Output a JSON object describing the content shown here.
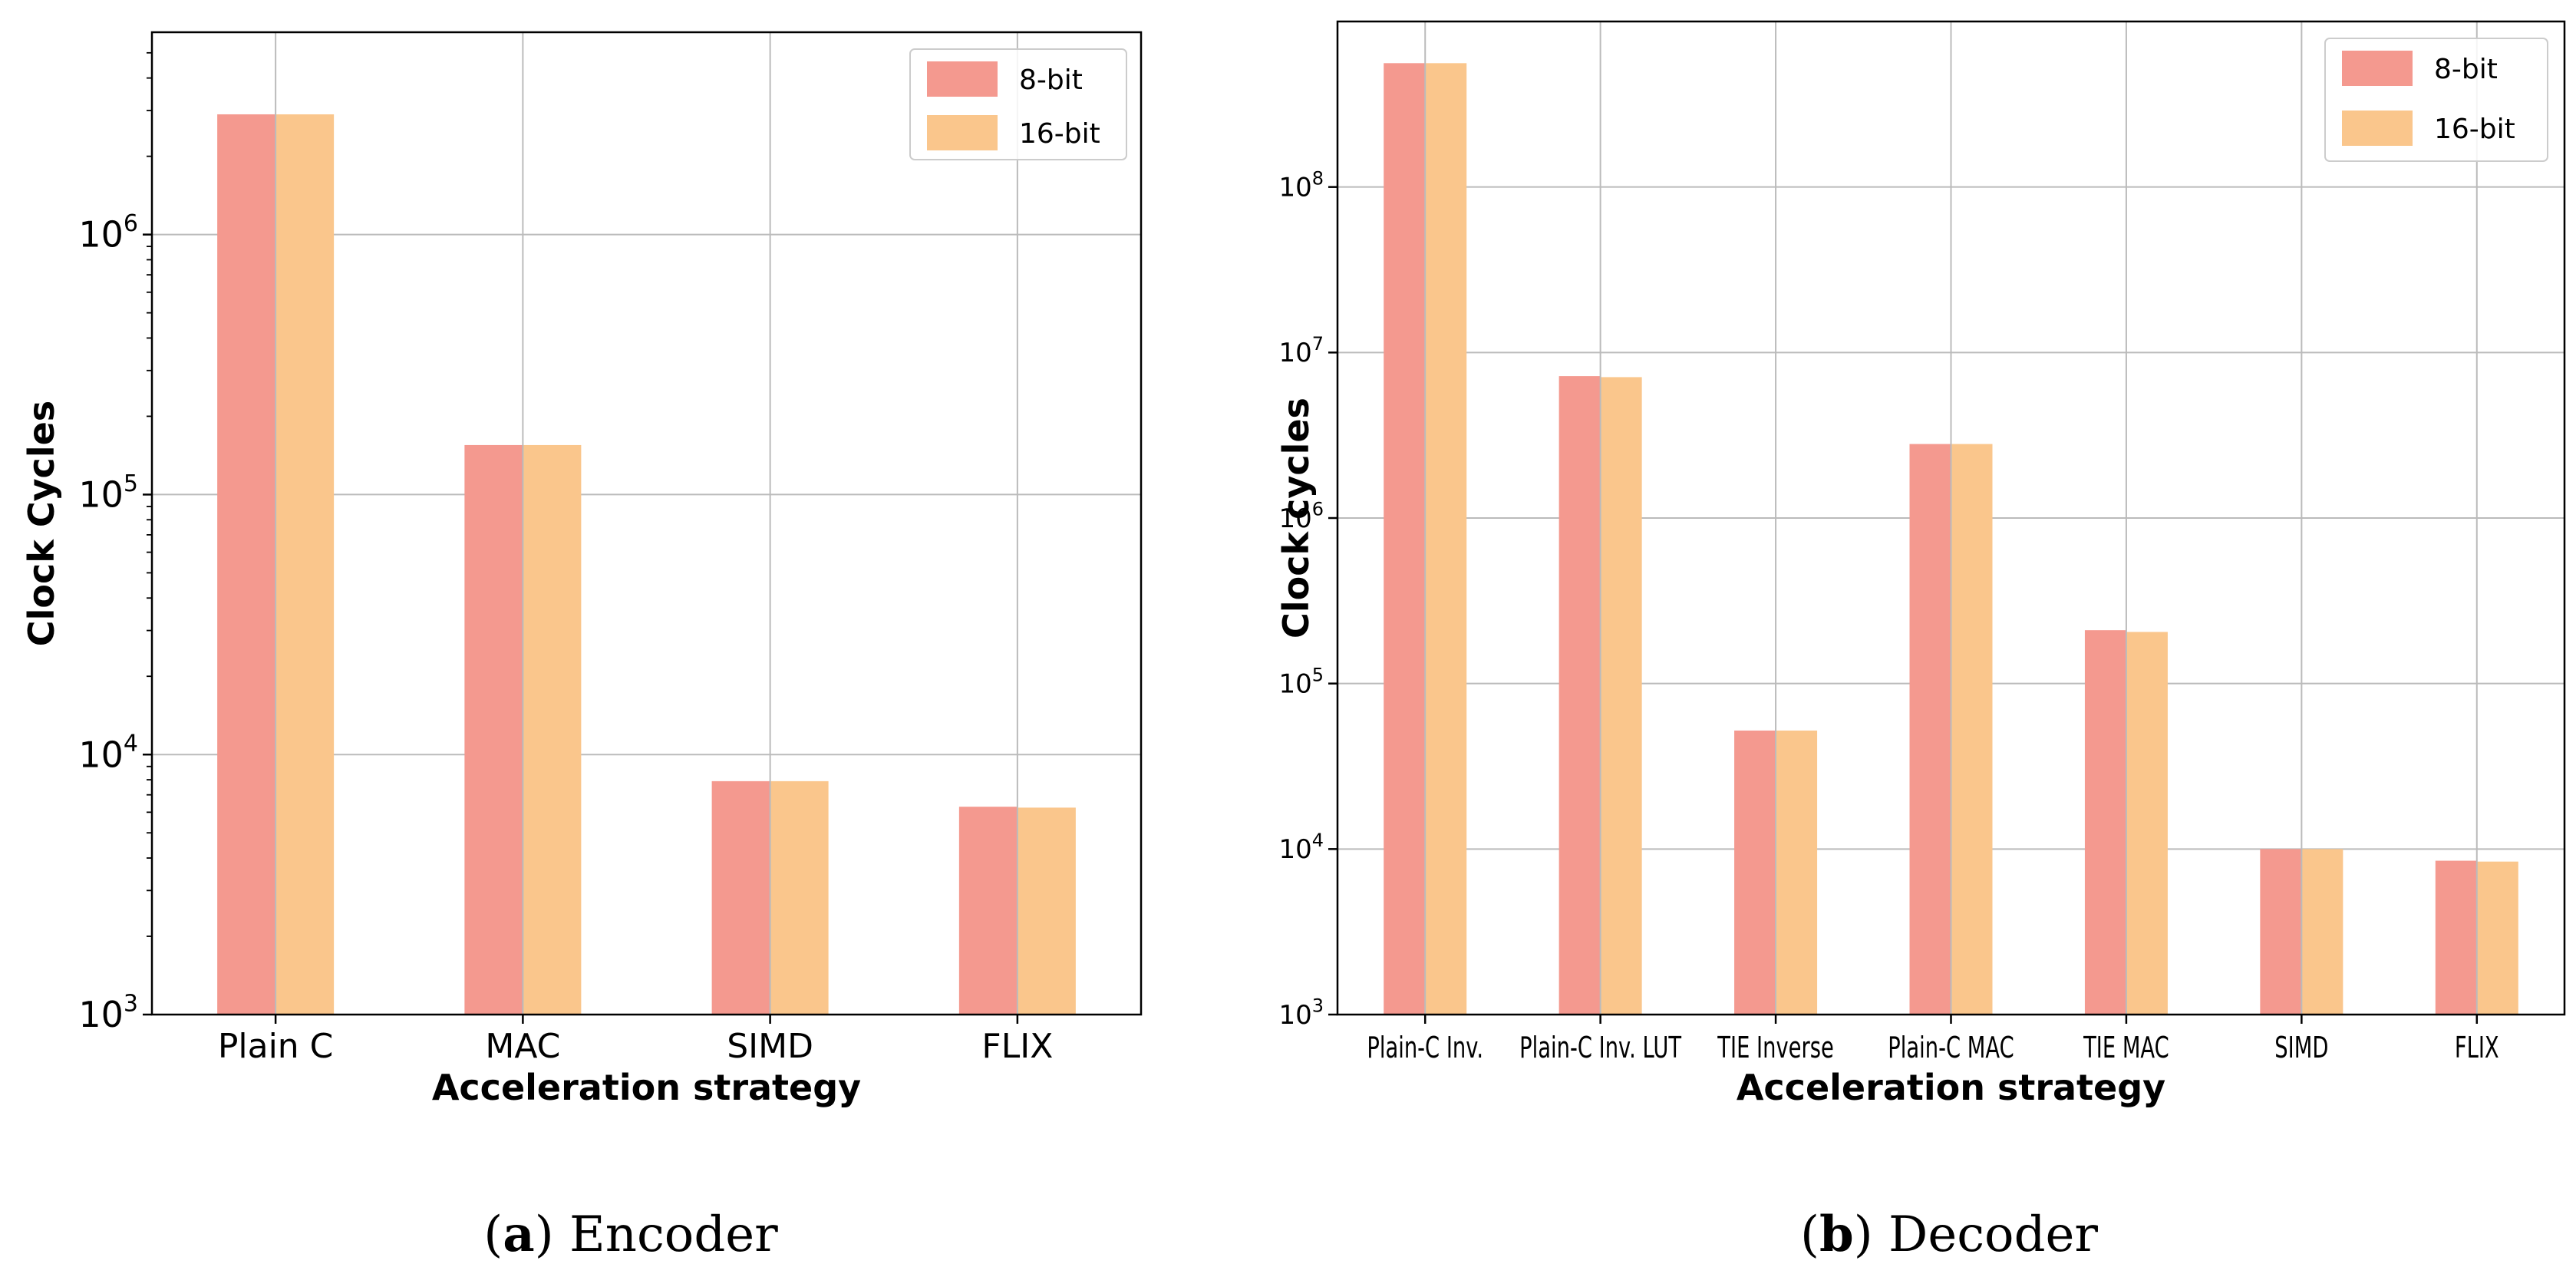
{
  "colors": {
    "bit8": "#f4998f",
    "bit16": "#fac68c",
    "grid": "#bbbbbb",
    "axis": "#000000"
  },
  "chart_data": [
    {
      "type": "bar",
      "panel": "a",
      "caption_letter": "(a)",
      "caption_text": "Encoder",
      "xlabel": "Acceleration strategy",
      "ylabel": "Clock Cycles",
      "yscale": "log",
      "ylim": [
        1000,
        6000000
      ],
      "yticks": [
        {
          "exp": "3",
          "value": 1000
        },
        {
          "exp": "4",
          "value": 10000
        },
        {
          "exp": "5",
          "value": 100000
        },
        {
          "exp": "6",
          "value": 1000000
        }
      ],
      "ytick_base": "10",
      "grid": true,
      "legend_position": "top-right",
      "categories": [
        "Plain C",
        "MAC",
        "SIMD",
        "FLIX"
      ],
      "series": [
        {
          "name": "8-bit",
          "values": [
            2900000,
            155000,
            7900,
            6300
          ]
        },
        {
          "name": "16-bit",
          "values": [
            2900000,
            155000,
            7900,
            6250
          ]
        }
      ]
    },
    {
      "type": "bar",
      "panel": "b",
      "caption_letter": "(b)",
      "caption_text": "Decoder",
      "xlabel": "Acceleration strategy",
      "ylabel": "Clock cycles",
      "yscale": "log",
      "ylim": [
        1000,
        1000000000
      ],
      "yticks": [
        {
          "exp": "3",
          "value": 1000
        },
        {
          "exp": "4",
          "value": 10000
        },
        {
          "exp": "5",
          "value": 100000
        },
        {
          "exp": "6",
          "value": 1000000
        },
        {
          "exp": "7",
          "value": 10000000
        },
        {
          "exp": "8",
          "value": 100000000
        }
      ],
      "ytick_base": "10",
      "grid": true,
      "legend_position": "top-right",
      "categories": [
        "Plain-C Inv.",
        "Plain-C Inv. LUT",
        "TIE Inverse",
        "Plain-C MAC",
        "TIE MAC",
        "SIMD",
        "FLIX"
      ],
      "series": [
        {
          "name": "8-bit",
          "values": [
            560000000,
            7200000,
            52000,
            2800000,
            210000,
            10000,
            8500
          ]
        },
        {
          "name": "16-bit",
          "values": [
            560000000,
            7100000,
            52000,
            2800000,
            205000,
            10000,
            8400
          ]
        }
      ]
    }
  ]
}
